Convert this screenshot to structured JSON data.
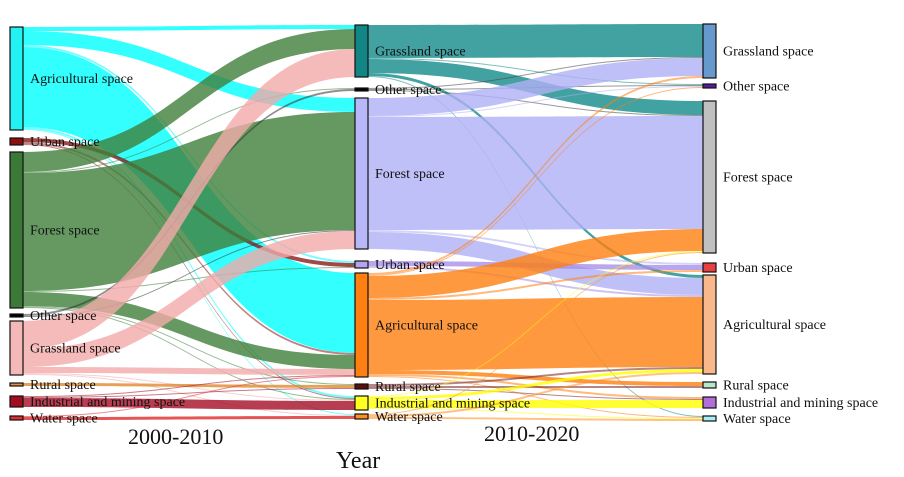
{
  "chart_data": {
    "type": "sankey",
    "xlabel": "Year",
    "stages": [
      "2000-2010",
      "2010-2020"
    ],
    "columns": [
      {
        "nodes": [
          {
            "id": "L_agri",
            "label": "Agricultural space",
            "color": "#22f2f2",
            "link_color": "#00ffff"
          },
          {
            "id": "L_urban",
            "label": "Urban space",
            "color": "#8b1010",
            "link_color": "#8b1a1a"
          },
          {
            "id": "L_forest",
            "label": "Forest space",
            "color": "#3a7a36",
            "link_color": "#3f7f3a"
          },
          {
            "id": "L_other",
            "label": "Other space",
            "color": "#000000",
            "link_color": "#333333"
          },
          {
            "id": "L_grass",
            "label": "Grassland space",
            "color": "#f4b8b8",
            "link_color": "#f2aaaa"
          },
          {
            "id": "L_rural",
            "label": "Rural space",
            "color": "#e09040",
            "link_color": "#e08a30"
          },
          {
            "id": "L_ind",
            "label": "Industrial and mining space",
            "color": "#a00c20",
            "link_color": "#a50e26"
          },
          {
            "id": "L_water",
            "label": "Water space",
            "color": "#e03030",
            "link_color": "#e02a2a"
          }
        ]
      },
      {
        "nodes": [
          {
            "id": "M_grass",
            "label": "Grassland space",
            "color": "#128585",
            "link_color": "#138a8a"
          },
          {
            "id": "M_other",
            "label": "Other space",
            "color": "#000000",
            "link_color": "#444444"
          },
          {
            "id": "M_forest",
            "label": "Forest space",
            "color": "#b8b8f8",
            "link_color": "#b0b0f6"
          },
          {
            "id": "M_urban",
            "label": "Urban space",
            "color": "#b4a4f0",
            "link_color": "#a890e8"
          },
          {
            "id": "M_agri",
            "label": "Agricultural space",
            "color": "#ff8010",
            "link_color": "#ff8010"
          },
          {
            "id": "M_rural",
            "label": "Rural space",
            "color": "#5a1010",
            "link_color": "#7a2020"
          },
          {
            "id": "M_ind",
            "label": "Industrial and mining space",
            "color": "#ffff20",
            "link_color": "#ffff00"
          },
          {
            "id": "M_water",
            "label": "Water space",
            "color": "#ff9020",
            "link_color": "#ff9020"
          }
        ]
      },
      {
        "nodes": [
          {
            "id": "R_grass",
            "label": "Grassland space",
            "color": "#6699cc"
          },
          {
            "id": "R_other",
            "label": "Other space",
            "color": "#5a1aa0"
          },
          {
            "id": "R_forest",
            "label": "Forest space",
            "color": "#c0c0c0"
          },
          {
            "id": "R_urban",
            "label": "Urban space",
            "color": "#e84040"
          },
          {
            "id": "R_agri",
            "label": "Agricultural space",
            "color": "#f8b88c"
          },
          {
            "id": "R_rural",
            "label": "Rural space",
            "color": "#b8e6c8"
          },
          {
            "id": "R_ind",
            "label": "Industrial and mining space",
            "color": "#b070d8"
          },
          {
            "id": "R_water",
            "label": "Water space",
            "color": "#a8f0f8"
          }
        ]
      }
    ],
    "links": [
      [
        "L_agri",
        "M_grass",
        4
      ],
      [
        "L_agri",
        "M_forest",
        14
      ],
      [
        "L_agri",
        "M_urban",
        2
      ],
      [
        "L_agri",
        "M_agri",
        80
      ],
      [
        "L_agri",
        "M_ind",
        2
      ],
      [
        "L_agri",
        "M_water",
        1
      ],
      [
        "L_urban",
        "M_urban",
        4
      ],
      [
        "L_urban",
        "M_agri",
        2
      ],
      [
        "L_urban",
        "M_ind",
        1
      ],
      [
        "L_forest",
        "M_grass",
        20
      ],
      [
        "L_forest",
        "M_other",
        1
      ],
      [
        "L_forest",
        "M_forest",
        118
      ],
      [
        "L_forest",
        "M_urban",
        1
      ],
      [
        "L_forest",
        "M_agri",
        14
      ],
      [
        "L_forest",
        "M_rural",
        1
      ],
      [
        "L_forest",
        "M_ind",
        1
      ],
      [
        "L_other",
        "M_other",
        2
      ],
      [
        "L_other",
        "M_forest",
        1
      ],
      [
        "L_grass",
        "M_grass",
        28
      ],
      [
        "L_grass",
        "M_forest",
        18
      ],
      [
        "L_grass",
        "M_agri",
        6
      ],
      [
        "L_grass",
        "M_ind",
        1
      ],
      [
        "L_grass",
        "M_water",
        1
      ],
      [
        "L_rural",
        "M_rural",
        3
      ],
      [
        "L_ind",
        "M_agri",
        1
      ],
      [
        "L_ind",
        "M_rural",
        1
      ],
      [
        "L_ind",
        "M_ind",
        9
      ],
      [
        "L_water",
        "M_agri",
        1
      ],
      [
        "L_water",
        "M_water",
        3
      ],
      [
        "M_grass",
        "R_grass",
        33
      ],
      [
        "M_grass",
        "R_other",
        1
      ],
      [
        "M_grass",
        "R_forest",
        14
      ],
      [
        "M_grass",
        "R_agri",
        3
      ],
      [
        "M_grass",
        "R_water",
        1
      ],
      [
        "M_other",
        "R_grass",
        1
      ],
      [
        "M_other",
        "R_other",
        1
      ],
      [
        "M_other",
        "R_forest",
        1
      ],
      [
        "M_forest",
        "R_grass",
        18
      ],
      [
        "M_forest",
        "R_other",
        1
      ],
      [
        "M_forest",
        "R_forest",
        113
      ],
      [
        "M_forest",
        "R_urban",
        2
      ],
      [
        "M_forest",
        "R_agri",
        17
      ],
      [
        "M_urban",
        "R_urban",
        5
      ],
      [
        "M_urban",
        "R_agri",
        2
      ],
      [
        "M_agri",
        "R_grass",
        2
      ],
      [
        "M_agri",
        "R_other",
        1
      ],
      [
        "M_agri",
        "R_forest",
        22
      ],
      [
        "M_agri",
        "R_urban",
        2
      ],
      [
        "M_agri",
        "R_agri",
        70
      ],
      [
        "M_agri",
        "R_rural",
        4
      ],
      [
        "M_agri",
        "R_ind",
        2
      ],
      [
        "M_agri",
        "R_water",
        1
      ],
      [
        "M_rural",
        "R_agri",
        2
      ],
      [
        "M_rural",
        "R_rural",
        2
      ],
      [
        "M_rural",
        "R_ind",
        1
      ],
      [
        "M_ind",
        "R_forest",
        1
      ],
      [
        "M_ind",
        "R_agri",
        3
      ],
      [
        "M_ind",
        "R_ind",
        8
      ],
      [
        "M_ind",
        "R_water",
        1
      ],
      [
        "M_water",
        "R_forest",
        1
      ],
      [
        "M_water",
        "R_agri",
        2
      ],
      [
        "M_water",
        "R_water",
        2
      ]
    ]
  }
}
